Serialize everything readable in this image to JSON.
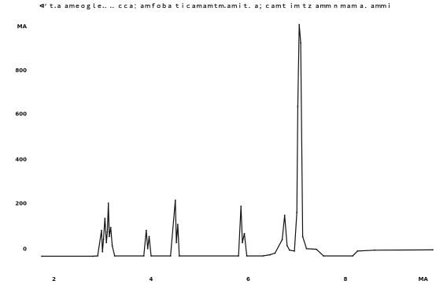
{
  "chart_data": {
    "type": "line",
    "title": "ᐊᐟ ｔ.ａ ａｍｅｏｇｌｅ.．.．ｃｃａ：ａｍｆｏｂａ ｔｉｃａｍａｍｔｍ.ａｍｉｔ．ａ；ｃａｍｔ ｉｍ ｔｚ ａｍｍ ｎ ｍａｍ ａ．ａｍｍｉ",
    "xlabel": "",
    "ylabel": "",
    "xlim": [
      1.7,
      9.8
    ],
    "ylim": [
      -60,
      780
    ],
    "x_ticks": [
      {
        "value": 2,
        "label": "2"
      },
      {
        "value": 4,
        "label": "4"
      },
      {
        "value": 6,
        "label": "6"
      },
      {
        "value": 8,
        "label": "8"
      },
      {
        "value": 9.6,
        "label": "MA"
      }
    ],
    "y_ticks": [
      {
        "value": 0,
        "label": "0"
      },
      {
        "value": 150,
        "label": "200"
      },
      {
        "value": 295,
        "label": "400"
      },
      {
        "value": 445,
        "label": "600"
      },
      {
        "value": 590,
        "label": "800"
      },
      {
        "value": 735,
        "label": "MA"
      }
    ],
    "series": [
      {
        "values": [
          {
            "x": 1.75,
            "y": -25
          },
          {
            "x": 2.8,
            "y": -25
          },
          {
            "x": 2.9,
            "y": -24
          },
          {
            "x": 2.98,
            "y": 60
          },
          {
            "x": 3.0,
            "y": -10
          },
          {
            "x": 3.02,
            "y": 30
          },
          {
            "x": 3.05,
            "y": 100
          },
          {
            "x": 3.08,
            "y": 20
          },
          {
            "x": 3.1,
            "y": 55
          },
          {
            "x": 3.12,
            "y": 150
          },
          {
            "x": 3.14,
            "y": 40
          },
          {
            "x": 3.17,
            "y": 70
          },
          {
            "x": 3.2,
            "y": 10
          },
          {
            "x": 3.25,
            "y": -24
          },
          {
            "x": 3.85,
            "y": -24
          },
          {
            "x": 3.9,
            "y": 60
          },
          {
            "x": 3.93,
            "y": 0
          },
          {
            "x": 3.96,
            "y": 40
          },
          {
            "x": 4.0,
            "y": -24
          },
          {
            "x": 4.4,
            "y": -24
          },
          {
            "x": 4.5,
            "y": 160
          },
          {
            "x": 4.52,
            "y": 20
          },
          {
            "x": 4.55,
            "y": 80
          },
          {
            "x": 4.58,
            "y": -24
          },
          {
            "x": 5.8,
            "y": -24
          },
          {
            "x": 5.85,
            "y": 140
          },
          {
            "x": 5.88,
            "y": 20
          },
          {
            "x": 5.92,
            "y": 50
          },
          {
            "x": 5.97,
            "y": -24
          },
          {
            "x": 6.3,
            "y": -24
          },
          {
            "x": 6.45,
            "y": -20
          },
          {
            "x": 6.55,
            "y": -15
          },
          {
            "x": 6.7,
            "y": 30
          },
          {
            "x": 6.75,
            "y": 110
          },
          {
            "x": 6.8,
            "y": 10
          },
          {
            "x": 6.85,
            "y": -5
          },
          {
            "x": 6.95,
            "y": -8
          },
          {
            "x": 7.0,
            "y": 120
          },
          {
            "x": 7.02,
            "y": 470
          },
          {
            "x": 7.05,
            "y": 740
          },
          {
            "x": 7.08,
            "y": 680
          },
          {
            "x": 7.12,
            "y": 40
          },
          {
            "x": 7.2,
            "y": 0
          },
          {
            "x": 7.4,
            "y": -2
          },
          {
            "x": 7.55,
            "y": -24
          },
          {
            "x": 8.15,
            "y": -24
          },
          {
            "x": 8.25,
            "y": -8
          },
          {
            "x": 8.6,
            "y": -5
          },
          {
            "x": 9.8,
            "y": -4
          }
        ],
        "color": "#111111"
      }
    ],
    "grid": false,
    "legend": "none"
  }
}
